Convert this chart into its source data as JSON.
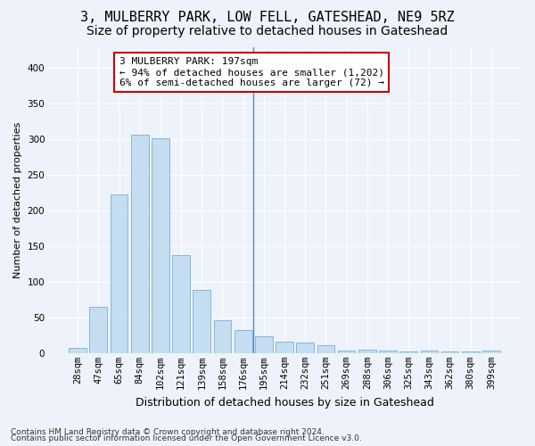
{
  "title": "3, MULBERRY PARK, LOW FELL, GATESHEAD, NE9 5RZ",
  "subtitle": "Size of property relative to detached houses in Gateshead",
  "xlabel": "Distribution of detached houses by size in Gateshead",
  "ylabel": "Number of detached properties",
  "bar_color": "#c5ddf0",
  "bar_edge_color": "#7aafd4",
  "background_color": "#eef2fb",
  "categories": [
    "28sqm",
    "47sqm",
    "65sqm",
    "84sqm",
    "102sqm",
    "121sqm",
    "139sqm",
    "158sqm",
    "176sqm",
    "195sqm",
    "214sqm",
    "232sqm",
    "251sqm",
    "269sqm",
    "288sqm",
    "306sqm",
    "325sqm",
    "343sqm",
    "362sqm",
    "380sqm",
    "399sqm"
  ],
  "values": [
    8,
    65,
    223,
    307,
    302,
    138,
    89,
    46,
    32,
    24,
    16,
    15,
    11,
    3,
    5,
    4,
    2,
    3,
    2,
    2,
    4
  ],
  "property_line_index": 9,
  "annotation_text": "3 MULBERRY PARK: 197sqm\n← 94% of detached houses are smaller (1,202)\n6% of semi-detached houses are larger (72) →",
  "annotation_box_color": "white",
  "annotation_box_edge_color": "#cc0000",
  "ylim": [
    0,
    430
  ],
  "yticks": [
    0,
    50,
    100,
    150,
    200,
    250,
    300,
    350,
    400
  ],
  "footer_line1": "Contains HM Land Registry data © Crown copyright and database right 2024.",
  "footer_line2": "Contains public sector information licensed under the Open Government Licence v3.0.",
  "title_fontsize": 11,
  "subtitle_fontsize": 10,
  "xlabel_fontsize": 9,
  "ylabel_fontsize": 8,
  "tick_fontsize": 7.5,
  "annotation_fontsize": 8,
  "footer_fontsize": 6.5
}
